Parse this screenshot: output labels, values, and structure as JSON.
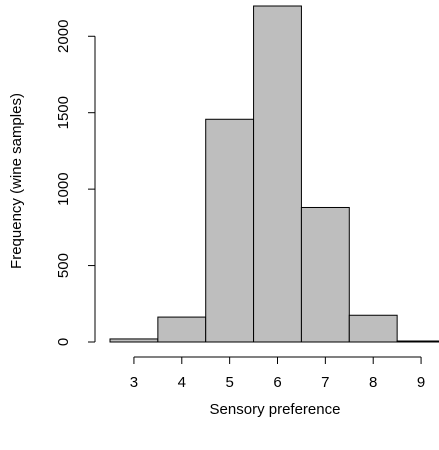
{
  "chart_data": {
    "type": "bar",
    "title": "",
    "xlabel": "Sensory preference",
    "ylabel": "Frequency (wine samples)",
    "categories": [
      "3",
      "4",
      "5",
      "6",
      "7",
      "8",
      "9"
    ],
    "values": [
      20,
      163,
      1457,
      2198,
      880,
      175,
      5
    ],
    "bin_edges": [
      2.5,
      3.5,
      4.5,
      5.5,
      6.5,
      7.5,
      8.5,
      9.5
    ],
    "x_ticks": [
      3,
      4,
      5,
      6,
      7,
      8,
      9
    ],
    "x_tick_labels": [
      "3",
      "4",
      "5",
      "6",
      "7",
      "8",
      "9"
    ],
    "y_ticks": [
      0,
      500,
      1000,
      1500,
      2000
    ],
    "y_tick_labels": [
      "0",
      "500",
      "1000",
      "1500",
      "2000"
    ],
    "xlim": [
      2.5,
      9.5
    ],
    "ylim": [
      0,
      2198
    ],
    "grid": false,
    "legend": "none",
    "colors": {
      "bar_fill": "#bebebe",
      "bar_stroke": "#000000",
      "axis": "#000000"
    }
  }
}
